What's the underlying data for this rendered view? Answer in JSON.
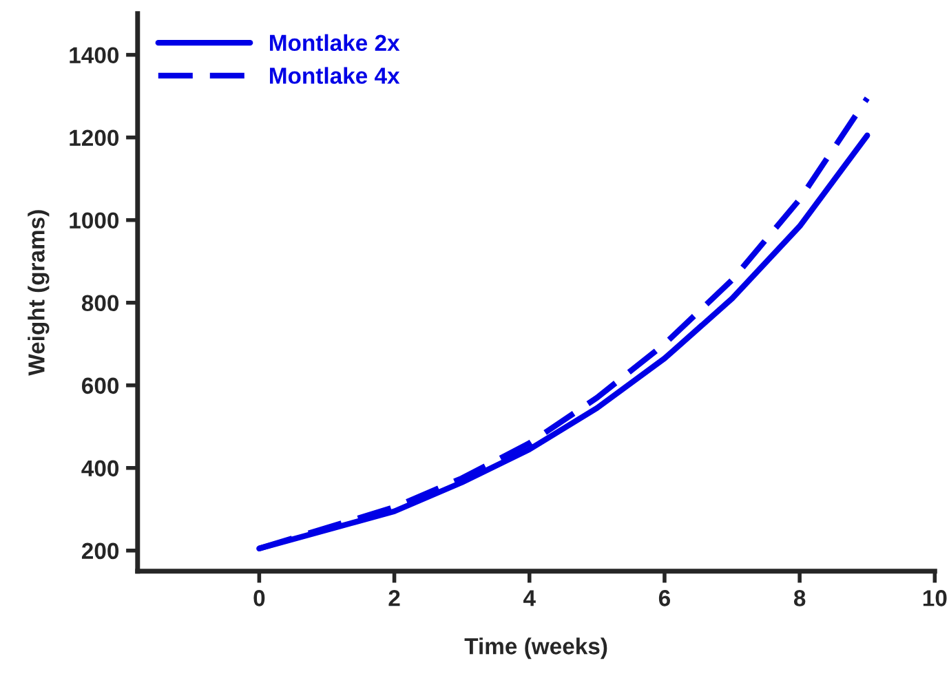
{
  "chart_data": {
    "type": "line",
    "xlabel": "Time (weeks)",
    "ylabel": "Weight (grams)",
    "x": [
      0,
      1,
      2,
      3,
      4,
      5,
      6,
      7,
      8,
      9
    ],
    "series": [
      {
        "name": "Montlake 2x",
        "color": "#0000e6",
        "line_style": "solid",
        "values": [
          205,
          250,
          295,
          365,
          445,
          545,
          665,
          810,
          985,
          1205
        ]
      },
      {
        "name": "Montlake 4x",
        "color": "#0000e6",
        "line_style": "dashed",
        "values": [
          205,
          255,
          305,
          375,
          460,
          570,
          700,
          855,
          1050,
          1295
        ]
      }
    ],
    "xlim": [
      -1.8,
      10
    ],
    "xticks": [
      0,
      2,
      4,
      6,
      8,
      10
    ],
    "ylim": [
      150,
      1500
    ],
    "yticks": [
      200,
      400,
      600,
      800,
      1000,
      1200,
      1400
    ],
    "grid": false,
    "legend": "top left",
    "marker": "none"
  }
}
